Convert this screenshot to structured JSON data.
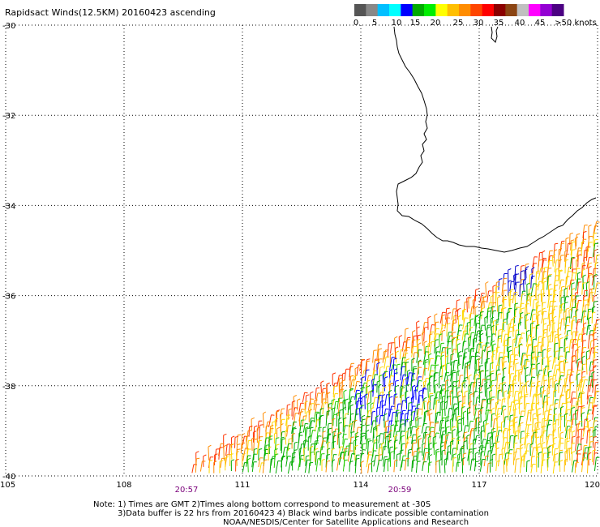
{
  "title": "Rapidsact Winds(12.5KM) 20160423 ascending",
  "legend": {
    "colors": [
      "#555555",
      "#888888",
      "#00bfff",
      "#00ffff",
      "#0000ff",
      "#00aa00",
      "#00ee00",
      "#ffff00",
      "#ffbf00",
      "#ff8c00",
      "#ff4500",
      "#ff0000",
      "#8b0000",
      "#8b4513",
      "#c0c0c0",
      "#ff00ff",
      "#9400d3",
      "#4b0082"
    ],
    "labels": [
      "0",
      "5",
      "10",
      "15",
      "20",
      "25",
      "30",
      "35",
      "40",
      "45",
      ">50 knots"
    ]
  },
  "map": {
    "lon_range": [
      105,
      120
    ],
    "lat_range": [
      -40,
      -30
    ],
    "x_ticks": [
      "105",
      "108",
      "111",
      "114",
      "117",
      "120"
    ],
    "y_ticks": [
      "-30",
      "-32",
      "-34",
      "-36",
      "-38",
      "-40"
    ],
    "times": [
      "20:57",
      "20:59"
    ],
    "swath": {
      "bottom_left_lon": 109.4,
      "top_right_lon": 120,
      "top_right_lat": -34.5
    }
  },
  "notes": [
    "Note: 1) Times are GMT 2)Times along bottom correspond to measurement at -30S",
    "3)Data buffer is 22 hrs from 20160423 4) Black wind barbs indicate possible contamination",
    "NOAA/NESDIS/Center for Satellite Applications and Research"
  ]
}
